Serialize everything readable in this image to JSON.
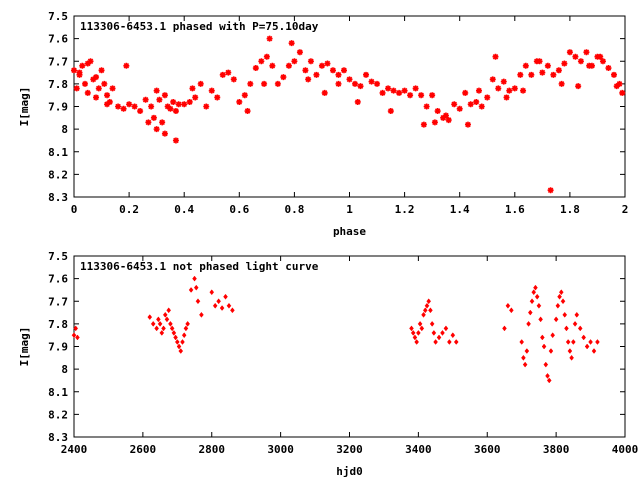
{
  "chart_data": [
    {
      "type": "scatter",
      "title": "113306-6453.1 phased with P=75.10day",
      "xlabel": "phase",
      "ylabel": "I[mag]",
      "xlim": [
        0,
        2
      ],
      "ylim": [
        7.5,
        8.3
      ],
      "y_inverted": true,
      "xticks": [
        0,
        0.2,
        0.4,
        0.6,
        0.8,
        1,
        1.2,
        1.4,
        1.6,
        1.8,
        2
      ],
      "xtick_labels": [
        "0",
        "0.2",
        "0.4",
        "0.6",
        "0.8",
        "1",
        "1.2",
        "1.4",
        "1.6",
        "1.8",
        "2"
      ],
      "yticks": [
        7.5,
        7.6,
        7.7,
        7.8,
        7.9,
        8,
        8.1,
        8.2,
        8.3
      ],
      "ytick_labels": [
        "7.5",
        "7.6",
        "7.7",
        "7.8",
        "7.9",
        "8",
        "8.1",
        "8.2",
        "8.3"
      ],
      "marker_color": "#ff0000",
      "series": [
        {
          "x": [
            0.0,
            0.01,
            0.02,
            0.03,
            0.04,
            0.05,
            0.06,
            0.07,
            0.08,
            0.09,
            0.1,
            0.11,
            0.12,
            0.13,
            0.14,
            0.16,
            0.18,
            0.2,
            0.22,
            0.24,
            0.26,
            0.28,
            0.29,
            0.3,
            0.31,
            0.32,
            0.33,
            0.34,
            0.35,
            0.36,
            0.37,
            0.38,
            0.4,
            0.42,
            0.44,
            0.46,
            0.48,
            0.5,
            0.52,
            0.54,
            0.56,
            0.58,
            0.6,
            0.62,
            0.64,
            0.66,
            0.68,
            0.7,
            0.72,
            0.74,
            0.76,
            0.78,
            0.8,
            0.82,
            0.84,
            0.86,
            0.88,
            0.9,
            0.92,
            0.94,
            0.96,
            0.98,
            1.0,
            1.02,
            1.04,
            1.06,
            1.08,
            1.1,
            1.12,
            1.14,
            1.16,
            1.18,
            1.2,
            1.22,
            1.24,
            1.26,
            1.28,
            1.3,
            1.32,
            1.34,
            1.36,
            1.38,
            1.4,
            1.42,
            1.44,
            1.46,
            1.48,
            1.5,
            1.52,
            1.54,
            1.56,
            1.58,
            1.6,
            1.62,
            1.64,
            1.66,
            1.68,
            1.7,
            1.72,
            1.74,
            1.76,
            1.78,
            1.8,
            1.82,
            1.84,
            1.86,
            1.88,
            1.9,
            1.92,
            1.94,
            1.96,
            1.98,
            1.99,
            0.02,
            0.05,
            0.08,
            0.12,
            0.19,
            0.27,
            0.3,
            0.33,
            0.37,
            0.43,
            0.63,
            0.69,
            0.71,
            0.79,
            0.85,
            0.91,
            0.96,
            1.03,
            1.15,
            1.27,
            1.31,
            1.35,
            1.43,
            1.47,
            1.53,
            1.57,
            1.63,
            1.69,
            1.73,
            1.77,
            1.83,
            1.87,
            1.91,
            1.97
          ],
          "y": [
            7.74,
            7.82,
            7.75,
            7.72,
            7.8,
            7.84,
            7.7,
            7.78,
            7.86,
            7.82,
            7.74,
            7.8,
            7.85,
            7.88,
            7.82,
            7.9,
            7.91,
            7.89,
            7.9,
            7.92,
            7.87,
            7.9,
            7.95,
            7.83,
            7.87,
            7.97,
            7.85,
            7.9,
            7.91,
            7.88,
            7.92,
            7.89,
            7.89,
            7.88,
            7.86,
            7.8,
            7.9,
            7.83,
            7.86,
            7.76,
            7.75,
            7.78,
            7.88,
            7.85,
            7.8,
            7.73,
            7.7,
            7.68,
            7.72,
            7.8,
            7.77,
            7.72,
            7.7,
            7.66,
            7.74,
            7.7,
            7.76,
            7.72,
            7.71,
            7.74,
            7.76,
            7.74,
            7.78,
            7.8,
            7.81,
            7.76,
            7.79,
            7.8,
            7.84,
            7.82,
            7.83,
            7.84,
            7.83,
            7.85,
            7.82,
            7.85,
            7.9,
            7.85,
            7.92,
            7.95,
            7.96,
            7.89,
            7.91,
            7.84,
            7.89,
            7.88,
            7.9,
            7.86,
            7.78,
            7.82,
            7.79,
            7.83,
            7.82,
            7.76,
            7.72,
            7.76,
            7.7,
            7.75,
            7.72,
            7.76,
            7.74,
            7.71,
            7.66,
            7.68,
            7.7,
            7.66,
            7.72,
            7.68,
            7.7,
            7.73,
            7.76,
            7.8,
            7.84,
            7.76,
            7.71,
            7.77,
            7.89,
            7.72,
            7.97,
            8.0,
            8.02,
            8.05,
            7.82,
            7.92,
            7.8,
            7.6,
            7.62,
            7.78,
            7.84,
            7.8,
            7.88,
            7.92,
            7.98,
            7.97,
            7.94,
            7.98,
            7.83,
            7.68,
            7.86,
            7.83,
            7.7,
            8.27,
            7.8,
            7.81,
            7.72,
            7.68,
            7.81
          ]
        }
      ]
    },
    {
      "type": "scatter",
      "title": "113306-6453.1 not phased light curve",
      "xlabel": "hjd0",
      "ylabel": "I[mag]",
      "xlim": [
        2400,
        4000
      ],
      "ylim": [
        7.5,
        8.3
      ],
      "y_inverted": true,
      "xticks": [
        2400,
        2600,
        2800,
        3000,
        3200,
        3400,
        3600,
        3800,
        4000
      ],
      "xtick_labels": [
        "2400",
        "2600",
        "2800",
        "3000",
        "3200",
        "3400",
        "3600",
        "3800",
        "4000"
      ],
      "yticks": [
        7.5,
        7.6,
        7.7,
        7.8,
        7.9,
        8,
        8.1,
        8.2,
        8.3
      ],
      "ytick_labels": [
        "7.5",
        "7.6",
        "7.7",
        "7.8",
        "7.9",
        "8",
        "8.1",
        "8.2",
        "8.3"
      ],
      "marker_color": "#ff0000",
      "series": [
        {
          "x": [
            2400,
            2405,
            2410,
            2620,
            2630,
            2640,
            2645,
            2650,
            2655,
            2660,
            2665,
            2670,
            2675,
            2680,
            2685,
            2690,
            2695,
            2700,
            2705,
            2710,
            2715,
            2720,
            2725,
            2730,
            2740,
            2750,
            2755,
            2760,
            2770,
            2800,
            2810,
            2820,
            2830,
            2840,
            2850,
            2860,
            3380,
            3385,
            3390,
            3395,
            3400,
            3405,
            3410,
            3415,
            3420,
            3425,
            3430,
            3435,
            3440,
            3445,
            3450,
            3460,
            3470,
            3480,
            3490,
            3500,
            3510,
            3650,
            3660,
            3670,
            3700,
            3705,
            3710,
            3715,
            3720,
            3725,
            3730,
            3735,
            3740,
            3745,
            3750,
            3755,
            3760,
            3765,
            3770,
            3775,
            3780,
            3785,
            3790,
            3800,
            3805,
            3810,
            3815,
            3820,
            3825,
            3830,
            3835,
            3840,
            3845,
            3850,
            3855,
            3860,
            3870,
            3880,
            3890,
            3900,
            3910,
            3920
          ],
          "y": [
            7.85,
            7.82,
            7.86,
            7.77,
            7.8,
            7.82,
            7.78,
            7.8,
            7.84,
            7.82,
            7.76,
            7.78,
            7.74,
            7.8,
            7.82,
            7.84,
            7.86,
            7.88,
            7.9,
            7.92,
            7.88,
            7.85,
            7.82,
            7.8,
            7.65,
            7.6,
            7.64,
            7.7,
            7.76,
            7.66,
            7.72,
            7.7,
            7.73,
            7.68,
            7.72,
            7.74,
            7.82,
            7.84,
            7.86,
            7.88,
            7.84,
            7.8,
            7.82,
            7.76,
            7.74,
            7.72,
            7.7,
            7.74,
            7.8,
            7.84,
            7.88,
            7.86,
            7.84,
            7.82,
            7.88,
            7.85,
            7.88,
            7.82,
            7.72,
            7.74,
            7.88,
            7.95,
            7.98,
            7.92,
            7.8,
            7.75,
            7.7,
            7.66,
            7.64,
            7.68,
            7.72,
            7.78,
            7.86,
            7.9,
            7.98,
            8.03,
            8.05,
            7.92,
            7.85,
            7.78,
            7.72,
            7.68,
            7.66,
            7.7,
            7.76,
            7.82,
            7.88,
            7.92,
            7.95,
            7.88,
            7.8,
            7.76,
            7.82,
            7.86,
            7.9,
            7.88,
            7.92,
            7.88
          ]
        }
      ]
    }
  ]
}
